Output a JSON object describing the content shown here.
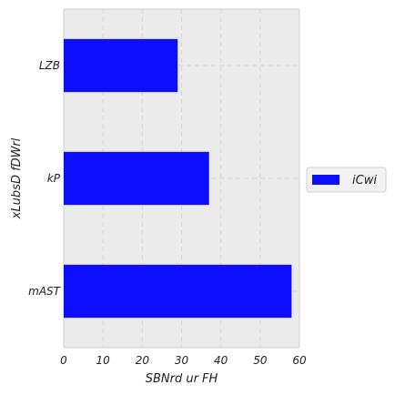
{
  "chart_data": {
    "type": "bar",
    "orientation": "horizontal",
    "categories": [
      "LZB",
      "kP",
      "mAST"
    ],
    "series": [
      {
        "name": "iCwi",
        "values": [
          29,
          37,
          58
        ],
        "color": "#0d0dff"
      }
    ],
    "xlabel": "SBNrd ur FH",
    "ylabel": "xLubsD fDWrl",
    "xlim": [
      0,
      60
    ],
    "xticks": [
      "0",
      "10",
      "20",
      "30",
      "40",
      "50",
      "60"
    ],
    "grid": true,
    "grid_style": "dashed",
    "legend_position": "right",
    "plot_background": "#ebebeb"
  }
}
